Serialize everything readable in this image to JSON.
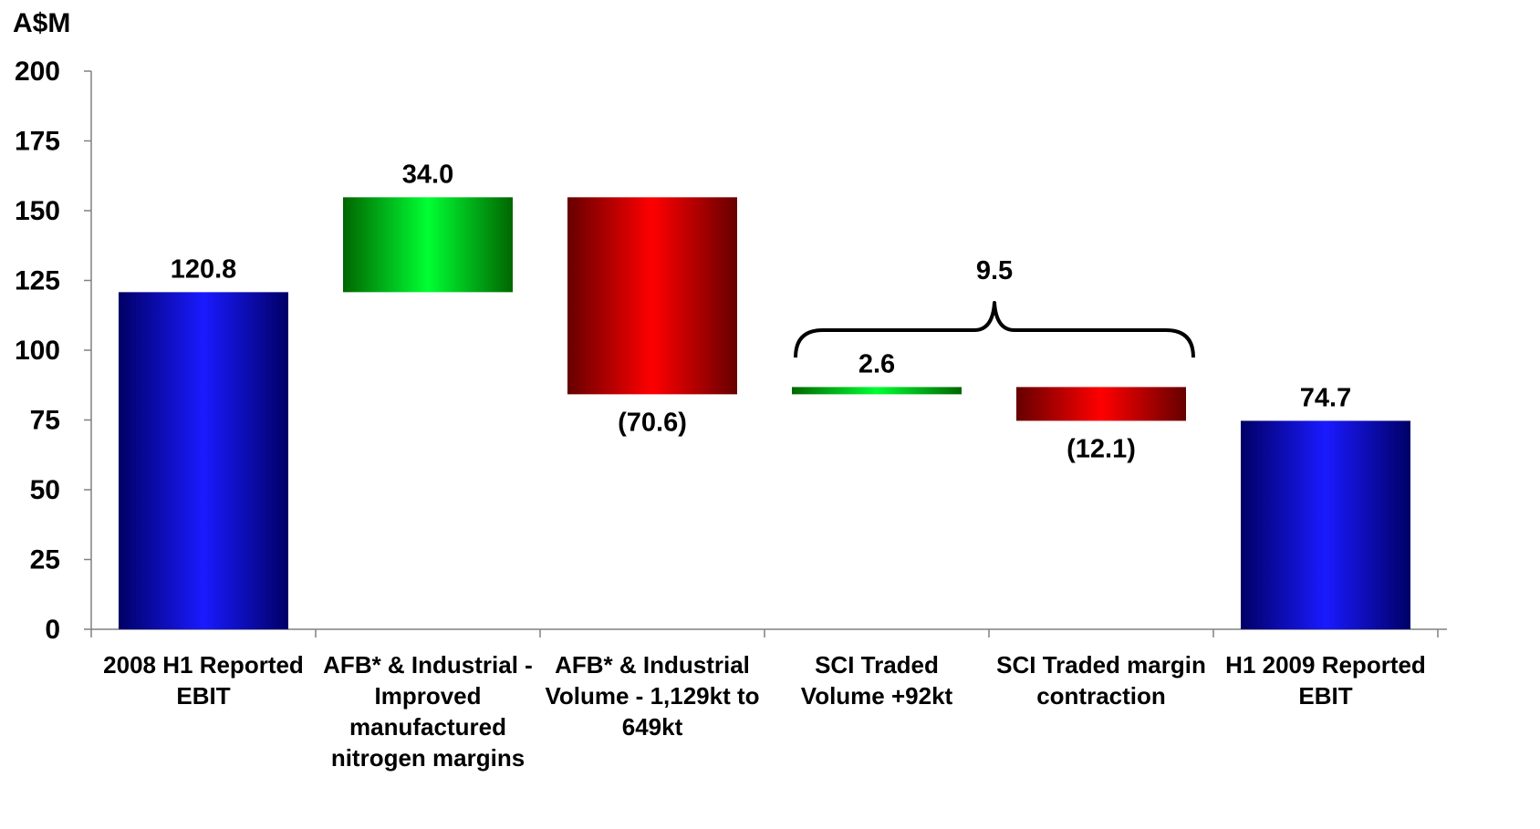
{
  "chart_data": {
    "type": "waterfall",
    "ylabel": "A$M",
    "ylim": [
      0,
      200
    ],
    "yticks": [
      "0",
      "25",
      "50",
      "75",
      "100",
      "125",
      "150",
      "175",
      "200"
    ],
    "grid": false,
    "legend": "none",
    "categories": [
      [
        "2008 H1 Reported",
        "EBIT"
      ],
      [
        "AFB* & Industrial -",
        "Improved",
        "manufactured",
        "nitrogen margins"
      ],
      [
        "AFB* & Industrial",
        "Volume - 1,129kt to",
        "649kt"
      ],
      [
        "SCI Traded",
        "Volume +92kt"
      ],
      [
        "SCI Traded margin",
        "contraction"
      ],
      [
        "H1 2009 Reported",
        "EBIT"
      ]
    ],
    "bars": [
      {
        "kind": "total",
        "start": 0,
        "end": 120.8,
        "label": "120.8"
      },
      {
        "kind": "increase",
        "start": 120.8,
        "end": 154.8,
        "label": "34.0"
      },
      {
        "kind": "decrease",
        "start": 154.8,
        "end": 84.2,
        "label": "(70.6)"
      },
      {
        "kind": "increase",
        "start": 84.2,
        "end": 86.8,
        "label": "2.6"
      },
      {
        "kind": "decrease",
        "start": 86.8,
        "end": 74.7,
        "label": "(12.1)"
      },
      {
        "kind": "total",
        "start": 0,
        "end": 74.7,
        "label": "74.7"
      }
    ],
    "annotation": {
      "type": "brace",
      "spans_categories": [
        3,
        4
      ],
      "label": "9.5"
    },
    "colors": {
      "total": [
        "#000066",
        "#1a1aff",
        "#000066"
      ],
      "increase": [
        "#006600",
        "#00ff33",
        "#006600"
      ],
      "decrease": [
        "#660000",
        "#ff0000",
        "#660000"
      ],
      "axis": "#808080"
    }
  }
}
